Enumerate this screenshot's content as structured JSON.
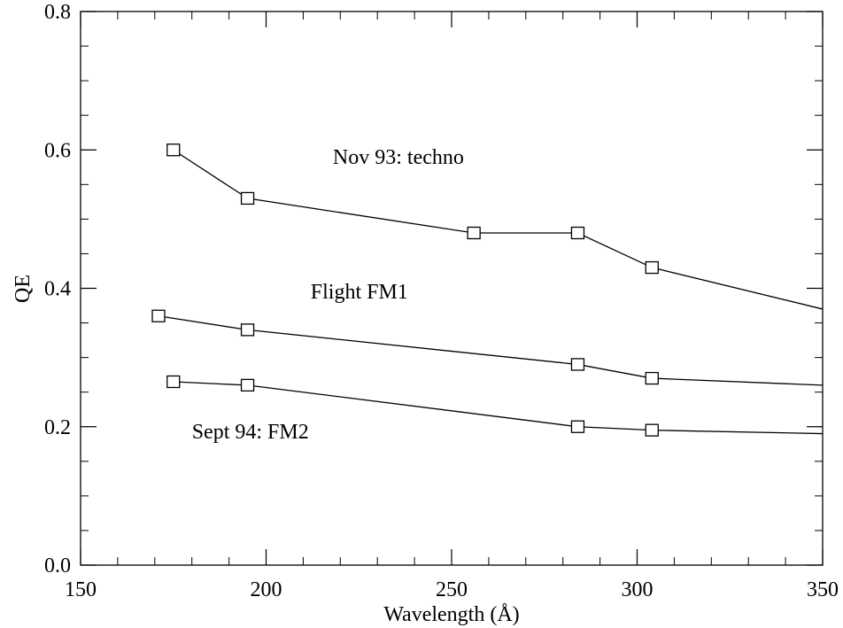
{
  "chart_data": {
    "type": "line",
    "xlabel": "Wavelength (Å)",
    "ylabel": "QE",
    "xlim": [
      150,
      350
    ],
    "ylim": [
      0.0,
      0.8
    ],
    "x_ticks": [
      150,
      200,
      250,
      300,
      350
    ],
    "x_tick_labels": [
      "150",
      "200",
      "250",
      "300",
      "350"
    ],
    "y_ticks": [
      0.0,
      0.2,
      0.4,
      0.6,
      0.8
    ],
    "y_tick_labels": [
      "0.0",
      "0.2",
      "0.4",
      "0.6",
      "0.8"
    ],
    "x_minor_step": 10,
    "y_minor_step": 0.05,
    "grid": false,
    "marker": "open-square",
    "line_color": "#000000",
    "series": [
      {
        "name": "Nov 93: techno",
        "label_at": [
          218,
          0.58
        ],
        "points": [
          [
            175,
            0.6
          ],
          [
            195,
            0.53
          ],
          [
            256,
            0.48
          ],
          [
            284,
            0.48
          ],
          [
            304,
            0.43
          ]
        ],
        "line_end": [
          350,
          0.37
        ]
      },
      {
        "name": "Flight FM1",
        "label_at": [
          212,
          0.385
        ],
        "points": [
          [
            171,
            0.36
          ],
          [
            195,
            0.34
          ],
          [
            284,
            0.29
          ],
          [
            304,
            0.27
          ]
        ],
        "line_end": [
          350,
          0.26
        ]
      },
      {
        "name": "Sept 94: FM2",
        "label_at": [
          180,
          0.183
        ],
        "points": [
          [
            175,
            0.265
          ],
          [
            195,
            0.26
          ],
          [
            284,
            0.2
          ],
          [
            304,
            0.195
          ]
        ],
        "line_end": [
          350,
          0.19
        ]
      }
    ]
  }
}
